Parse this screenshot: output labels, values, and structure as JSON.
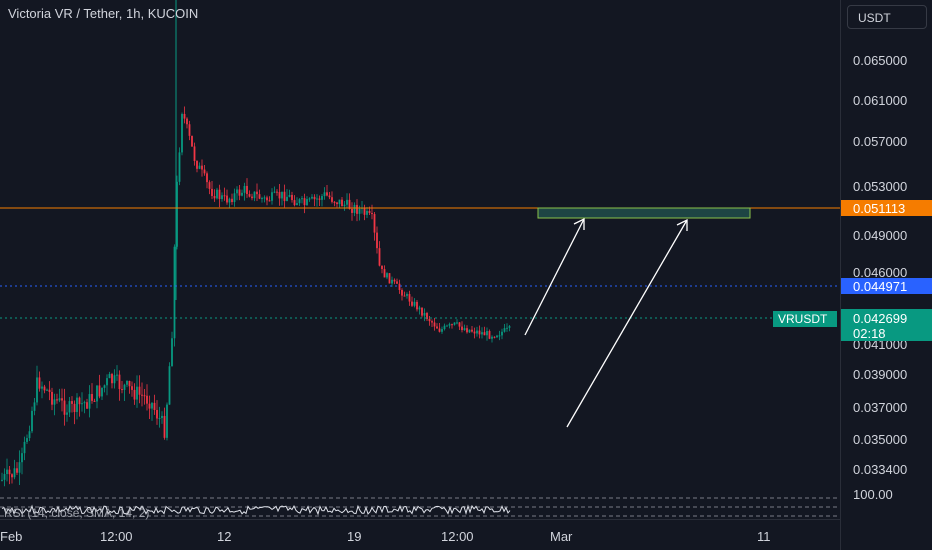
{
  "header": {
    "title": "Victoria VR / Tether, 1h, KUCOIN",
    "currency_button": "USDT"
  },
  "price_axis": {
    "ticks": [
      "0.065000",
      "0.061000",
      "0.057000",
      "0.053000",
      "0.049000",
      "0.046000",
      "0.041000",
      "0.039000",
      "0.037000",
      "0.035000",
      "0.033400"
    ],
    "indicator_top": "100.00"
  },
  "tags": {
    "resistance": {
      "value": "0.051113",
      "color": "#f57c00"
    },
    "blue_line": {
      "value": "0.044971",
      "color": "#2962ff"
    },
    "current": {
      "symbol": "VRUSDT",
      "price": "0.042699",
      "countdown": "02:18",
      "color": "#089981"
    }
  },
  "time_axis": {
    "labels": [
      "Feb",
      "12:00",
      "12",
      "19",
      "12:00",
      "Mar",
      "11"
    ]
  },
  "indicator": {
    "label": "RSI (14, close, SMA, 14, 2)"
  },
  "chart_data": {
    "type": "candlestick",
    "title": "Victoria VR / Tether, 1h, KUCOIN",
    "y_range": [
      0.0325,
      0.0695
    ],
    "horizontal_levels": [
      0.051113,
      0.044971,
      0.042699
    ],
    "zone": {
      "low": 0.0505,
      "high": 0.0513
    },
    "colors": {
      "up": "#089981",
      "down": "#f23645"
    }
  }
}
